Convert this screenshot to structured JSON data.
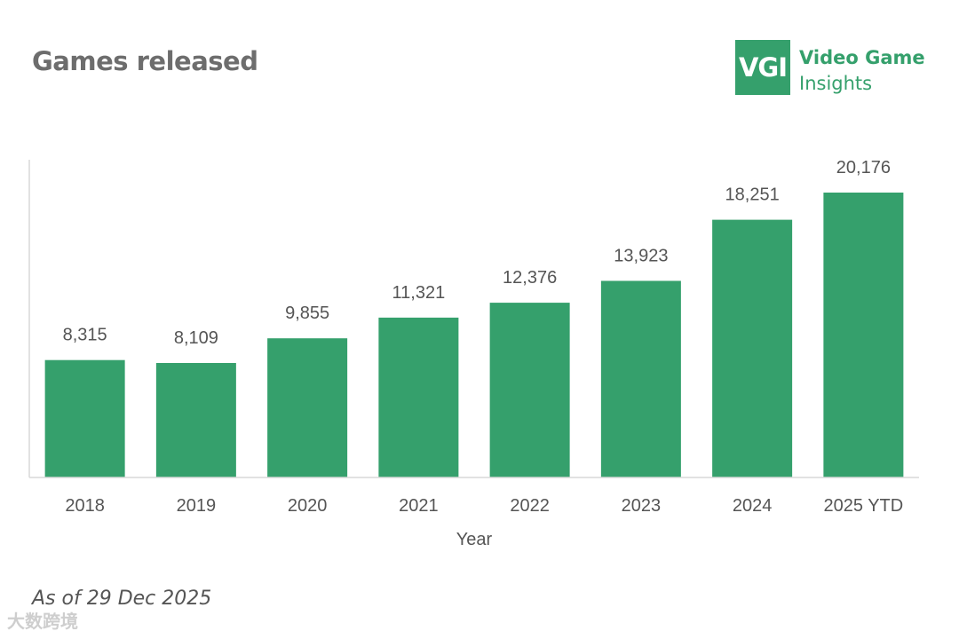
{
  "title": "Games released",
  "logo": {
    "mark": "VGI",
    "line1": "Video Game",
    "line2": "Insights"
  },
  "footnote": "As of 29 Dec 2025",
  "watermark": "大数跨境",
  "colors": {
    "bar": "#35a06c",
    "accent": "#35a06c",
    "axis": "#d9d9d9",
    "text": "#555555"
  },
  "chart_data": {
    "type": "bar",
    "title": "Games released",
    "categories": [
      "2018",
      "2019",
      "2020",
      "2021",
      "2022",
      "2023",
      "2024",
      "2025 YTD"
    ],
    "values": [
      8315,
      8109,
      9855,
      11321,
      12376,
      13923,
      18251,
      20176
    ],
    "value_labels": [
      "8,315",
      "8,109",
      "9,855",
      "11,321",
      "12,376",
      "13,923",
      "18,251",
      "20,176"
    ],
    "xlabel": "Year",
    "ylabel": "",
    "ylim": [
      0,
      22500
    ],
    "grid": false,
    "legend": "none"
  }
}
